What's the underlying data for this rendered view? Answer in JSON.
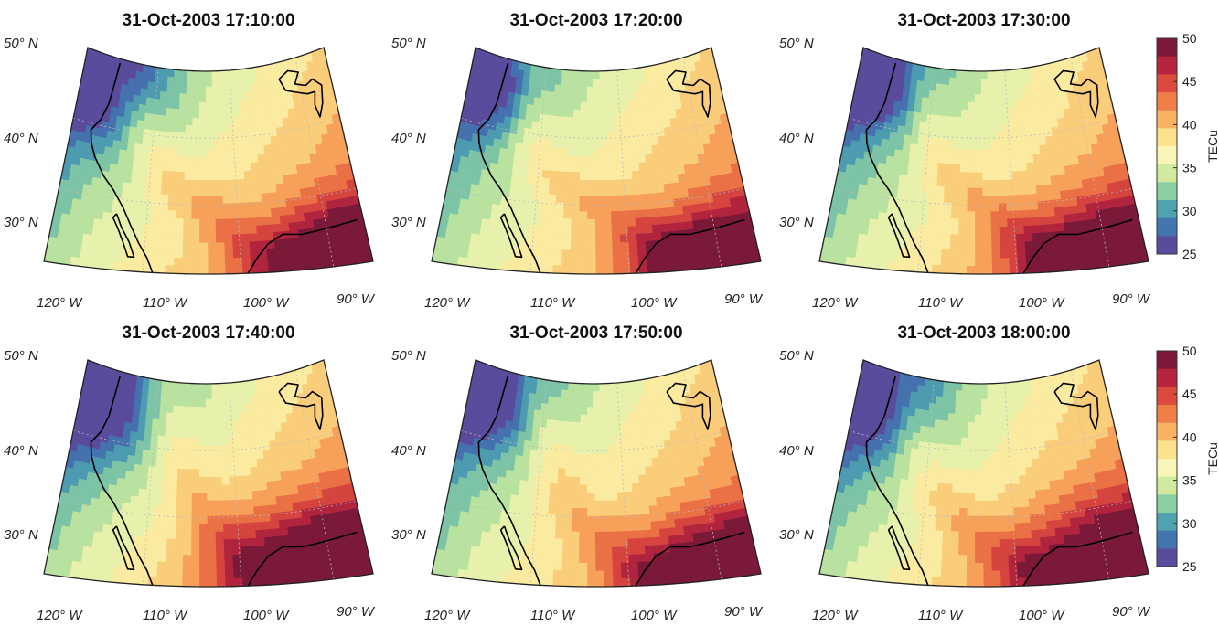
{
  "panels": [
    {
      "title": "31-Oct-2003 17:10:00",
      "ridge": [
        [
          0.1,
          0.02
        ],
        [
          0.22,
          0.2
        ],
        [
          0.3,
          0.4
        ],
        [
          0.38,
          0.56
        ],
        [
          0.5,
          0.68
        ],
        [
          0.62,
          0.86
        ],
        [
          0.75,
          1.0
        ]
      ],
      "hot": [
        0.96,
        0.95,
        0.3,
        0.34
      ],
      "cold": [
        0.07,
        0.08,
        0.26,
        0.34
      ]
    },
    {
      "title": "31-Oct-2003 17:20:00",
      "ridge": [
        [
          0.2,
          0.02
        ],
        [
          0.26,
          0.24
        ],
        [
          0.3,
          0.46
        ],
        [
          0.4,
          0.58
        ],
        [
          0.54,
          0.68
        ],
        [
          0.66,
          0.84
        ],
        [
          0.78,
          1.0
        ]
      ],
      "hot": [
        0.92,
        0.97,
        0.3,
        0.28
      ],
      "cold": [
        0.06,
        0.1,
        0.22,
        0.3
      ]
    },
    {
      "title": "31-Oct-2003 17:30:00",
      "ridge": [
        [
          0.24,
          0.02
        ],
        [
          0.28,
          0.22
        ],
        [
          0.32,
          0.44
        ],
        [
          0.42,
          0.58
        ],
        [
          0.54,
          0.7
        ],
        [
          0.64,
          0.86
        ],
        [
          0.76,
          1.0
        ]
      ],
      "hot": [
        0.9,
        0.96,
        0.32,
        0.3
      ],
      "cold": [
        0.06,
        0.08,
        0.24,
        0.34
      ]
    },
    {
      "title": "31-Oct-2003 17:40:00",
      "ridge": [
        [
          0.3,
          0.02
        ],
        [
          0.36,
          0.24
        ],
        [
          0.4,
          0.42
        ],
        [
          0.44,
          0.54
        ],
        [
          0.5,
          0.66
        ],
        [
          0.58,
          0.82
        ],
        [
          0.7,
          1.0
        ]
      ],
      "hot": [
        0.88,
        0.94,
        0.36,
        0.34
      ],
      "cold": [
        0.06,
        0.12,
        0.26,
        0.4
      ]
    },
    {
      "title": "31-Oct-2003 17:50:00",
      "ridge": [
        [
          0.22,
          0.02
        ],
        [
          0.3,
          0.22
        ],
        [
          0.36,
          0.42
        ],
        [
          0.4,
          0.6
        ],
        [
          0.5,
          0.74
        ],
        [
          0.6,
          0.88
        ],
        [
          0.7,
          1.0
        ]
      ],
      "hot": [
        0.9,
        0.96,
        0.3,
        0.28
      ],
      "cold": [
        0.06,
        0.1,
        0.24,
        0.36
      ]
    },
    {
      "title": "31-Oct-2003 18:00:00",
      "ridge": [
        [
          0.14,
          0.02
        ],
        [
          0.22,
          0.2
        ],
        [
          0.28,
          0.4
        ],
        [
          0.36,
          0.58
        ],
        [
          0.46,
          0.72
        ],
        [
          0.58,
          0.86
        ],
        [
          0.7,
          1.0
        ]
      ],
      "hot": [
        0.94,
        0.94,
        0.36,
        0.3
      ],
      "cold": [
        0.05,
        0.1,
        0.26,
        0.4
      ]
    }
  ],
  "lat_labels": [
    "50° N",
    "40° N",
    "30° N"
  ],
  "lon_labels": [
    "120° W",
    "110° W",
    "100° W",
    "90° W"
  ],
  "colorbar": {
    "label": "TECu",
    "min": 25,
    "max": 50,
    "ticks": [
      "50",
      "45",
      "40",
      "35",
      "30",
      "25"
    ],
    "colors": [
      "#7b1939",
      "#b5253e",
      "#dc4a3e",
      "#ef7d47",
      "#f9b162",
      "#fbe18c",
      "#f8f5b6",
      "#d0eb9f",
      "#8ccfa2",
      "#4fa3b1",
      "#4375b0",
      "#5a4b9c"
    ]
  }
}
